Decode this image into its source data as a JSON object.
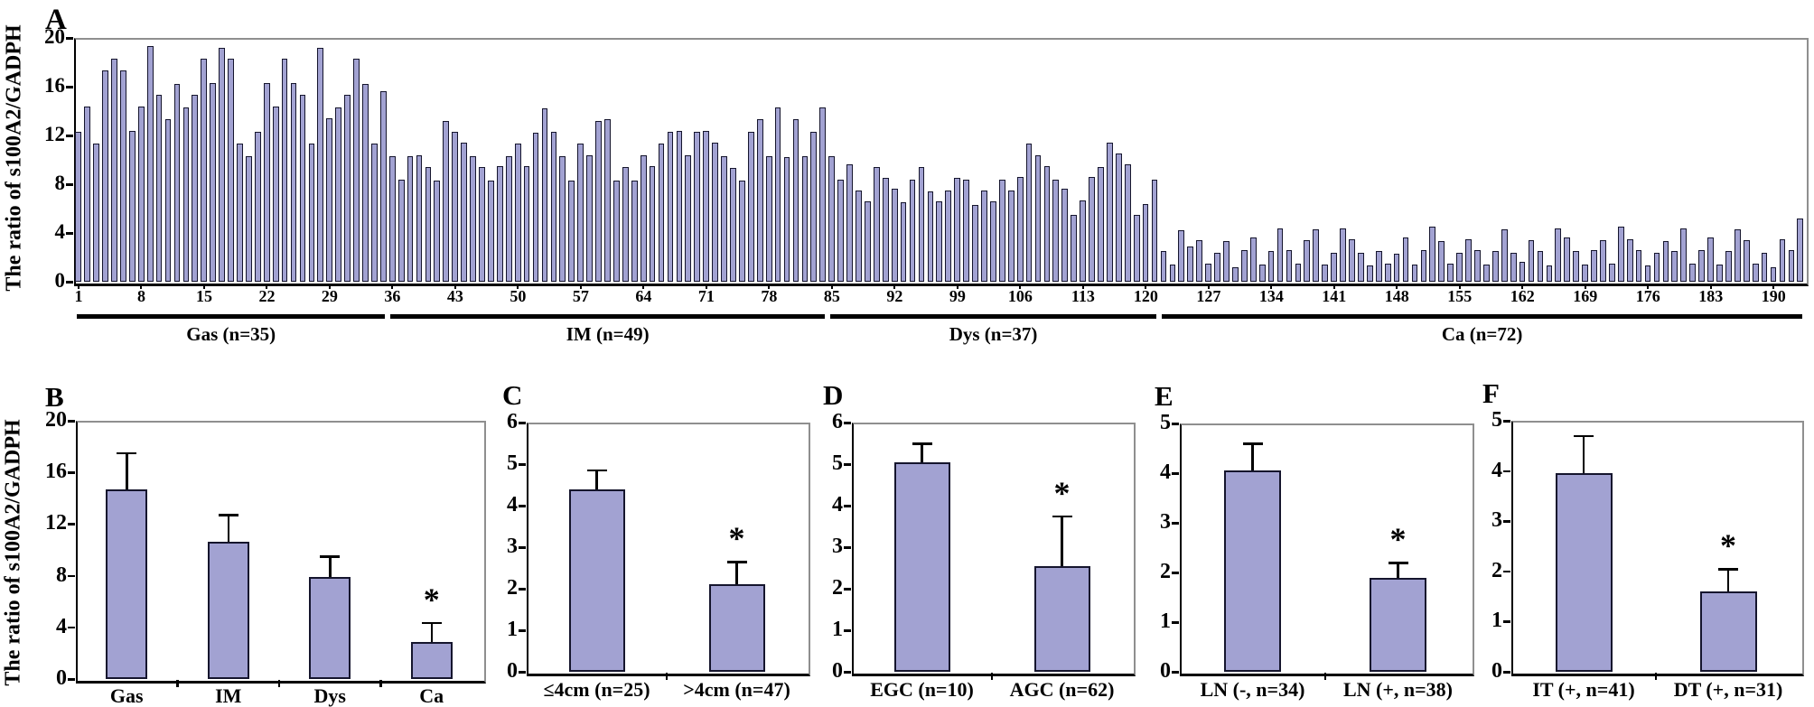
{
  "figure": {
    "y_axis_label_top": "The ratio of s100A2/GADPH",
    "y_axis_label_bottom": "The ratio of s100A2/GADPH",
    "bar_fill_color": "#a2a2d2",
    "bar_border_color": "#15152d",
    "axis_color": "#000000",
    "frame_gray_color": "#8f8f8f",
    "significance_marker": "*"
  },
  "chart_data": [
    {
      "id": "A",
      "type": "bar",
      "panel_label": "A",
      "ylabel": "The ratio of s100A2/GADPH",
      "ylim": [
        0,
        20
      ],
      "yticks": [
        20,
        16,
        12,
        8,
        4,
        0
      ],
      "x_tick_labels": [
        1,
        8,
        15,
        22,
        29,
        36,
        43,
        50,
        57,
        64,
        71,
        78,
        85,
        92,
        99,
        106,
        113,
        120,
        127,
        134,
        141,
        148,
        155,
        162,
        169,
        176,
        183,
        190
      ],
      "groups": [
        {
          "label": "Gas (n=35)",
          "n": 35
        },
        {
          "label": "IM (n=49)",
          "n": 49
        },
        {
          "label": "Dys (n=37)",
          "n": 37
        },
        {
          "label": "Ca (n=72)",
          "n": 72
        }
      ],
      "values": [
        12.3,
        14.4,
        11.3,
        17.3,
        18.3,
        17.3,
        12.4,
        14.4,
        19.3,
        15.3,
        13.3,
        16.2,
        14.3,
        15.3,
        18.3,
        16.3,
        19.2,
        18.3,
        11.3,
        10.3,
        12.3,
        16.3,
        14.4,
        18.3,
        16.3,
        15.3,
        11.3,
        19.2,
        13.4,
        14.3,
        15.3,
        18.3,
        16.2,
        11.3,
        15.6,
        10.3,
        8.4,
        10.3,
        10.4,
        9.4,
        8.3,
        13.2,
        12.3,
        11.4,
        10.3,
        9.4,
        8.3,
        9.5,
        10.3,
        11.3,
        9.5,
        12.2,
        14.2,
        12.3,
        10.3,
        8.3,
        11.3,
        10.4,
        13.2,
        13.3,
        8.3,
        9.4,
        8.3,
        10.4,
        9.5,
        11.3,
        12.3,
        12.4,
        10.4,
        12.3,
        12.4,
        11.4,
        10.3,
        9.3,
        8.3,
        12.3,
        13.3,
        10.3,
        14.3,
        10.2,
        13.3,
        10.3,
        12.3,
        14.3,
        10.3,
        8.4,
        9.6,
        7.5,
        6.6,
        9.4,
        8.5,
        7.6,
        6.5,
        8.4,
        9.4,
        7.4,
        6.6,
        7.5,
        8.5,
        8.4,
        6.3,
        7.5,
        6.6,
        8.4,
        7.5,
        8.6,
        11.3,
        10.4,
        9.5,
        8.4,
        7.6,
        5.5,
        6.7,
        8.6,
        9.4,
        11.4,
        10.5,
        9.6,
        5.5,
        6.4,
        8.4,
        2.5,
        1.4,
        4.2,
        2.9,
        3.4,
        1.5,
        2.4,
        3.3,
        1.2,
        2.6,
        3.6,
        1.4,
        2.5,
        4.4,
        2.6,
        1.5,
        3.4,
        4.3,
        1.4,
        2.4,
        4.4,
        3.5,
        2.4,
        1.3,
        2.5,
        1.5,
        2.3,
        3.6,
        1.4,
        2.6,
        4.5,
        3.3,
        1.5,
        2.4,
        3.5,
        2.6,
        1.4,
        2.5,
        4.3,
        2.4,
        1.6,
        3.4,
        2.5,
        1.3,
        4.4,
        3.6,
        2.5,
        1.4,
        2.6,
        3.4,
        1.5,
        4.5,
        3.5,
        2.6,
        1.3,
        2.4,
        3.3,
        2.5,
        4.4,
        1.5,
        2.6,
        3.6,
        1.4,
        2.5,
        4.3,
        3.4,
        1.5,
        2.4,
        1.2,
        3.5,
        2.6,
        5.2
      ]
    },
    {
      "id": "B",
      "type": "bar",
      "panel_label": "B",
      "ylabel": "The ratio of s100A2/GADPH",
      "ylim": [
        0,
        20
      ],
      "yticks": [
        20,
        16,
        12,
        8,
        4,
        0
      ],
      "categories": [
        "Gas",
        "IM",
        "Dys",
        "Ca"
      ],
      "values": [
        14.7,
        10.6,
        7.9,
        2.9
      ],
      "errors": [
        2.8,
        2.1,
        1.6,
        1.45
      ],
      "significant": [
        false,
        false,
        false,
        true
      ]
    },
    {
      "id": "C",
      "type": "bar",
      "panel_label": "C",
      "ylim": [
        0,
        6
      ],
      "yticks": [
        6,
        5,
        4,
        3,
        2,
        1,
        0
      ],
      "categories": [
        "≤4cm (n=25)",
        ">4cm (n=47)"
      ],
      "values": [
        4.4,
        2.1
      ],
      "errors": [
        0.45,
        0.55
      ],
      "significant": [
        false,
        true
      ]
    },
    {
      "id": "D",
      "type": "bar",
      "panel_label": "D",
      "ylim": [
        0,
        6
      ],
      "yticks": [
        6,
        5,
        4,
        3,
        2,
        1,
        0
      ],
      "categories": [
        "EGC (n=10)",
        "AGC (n=62)"
      ],
      "values": [
        5.05,
        2.55
      ],
      "errors": [
        0.45,
        1.2
      ],
      "significant": [
        false,
        true
      ]
    },
    {
      "id": "E",
      "type": "bar",
      "panel_label": "E",
      "ylim": [
        0,
        5
      ],
      "yticks": [
        5,
        4,
        3,
        2,
        1,
        0
      ],
      "categories": [
        "LN (-, n=34)",
        "LN (+, n=38)"
      ],
      "values": [
        4.05,
        1.9
      ],
      "errors": [
        0.55,
        0.3
      ],
      "significant": [
        false,
        true
      ]
    },
    {
      "id": "F",
      "type": "bar",
      "panel_label": "F",
      "ylim": [
        0,
        5
      ],
      "yticks": [
        5,
        4,
        3,
        2,
        1,
        0
      ],
      "categories": [
        "IT (+, n=41)",
        "DT (+, n=31)"
      ],
      "values": [
        3.95,
        1.6
      ],
      "errors": [
        0.75,
        0.45
      ],
      "significant": [
        false,
        true
      ]
    }
  ]
}
